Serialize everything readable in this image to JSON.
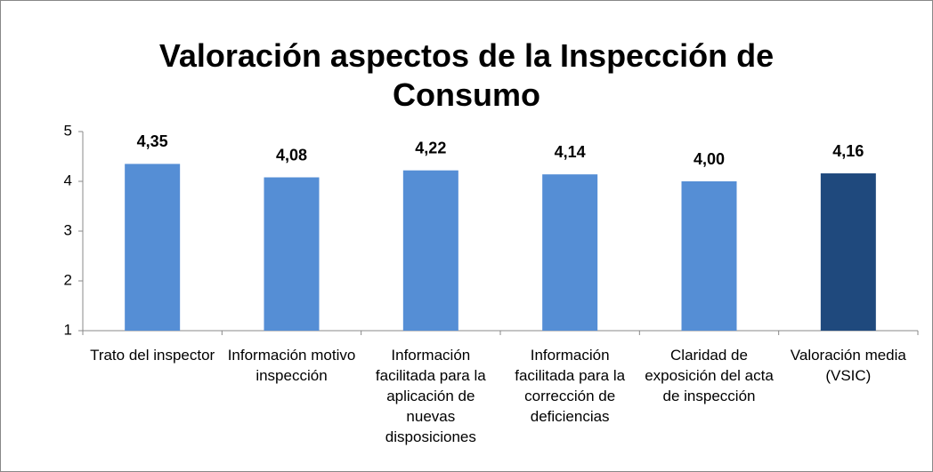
{
  "chart_data": {
    "type": "bar",
    "title": "Valoración aspectos de la Inspección de Consumo",
    "categories": [
      "Trato del inspector",
      "Información motivo inspección",
      "Información facilitada para la aplicación de nuevas disposiciones",
      "Información facilitada para la corrección de deficiencias",
      "Claridad de exposición del acta de inspección",
      "Valoración media (VSIC)"
    ],
    "values": [
      4.35,
      4.08,
      4.22,
      4.14,
      4.0,
      4.16
    ],
    "value_labels": [
      "4,35",
      "4,08",
      "4,22",
      "4,14",
      "4,00",
      "4,16"
    ],
    "colors": [
      "#558ed5",
      "#558ed5",
      "#558ed5",
      "#558ed5",
      "#558ed5",
      "#1f497d"
    ],
    "ylim": [
      1,
      5
    ],
    "yticks": [
      1,
      2,
      3,
      4,
      5
    ],
    "grid": false
  }
}
